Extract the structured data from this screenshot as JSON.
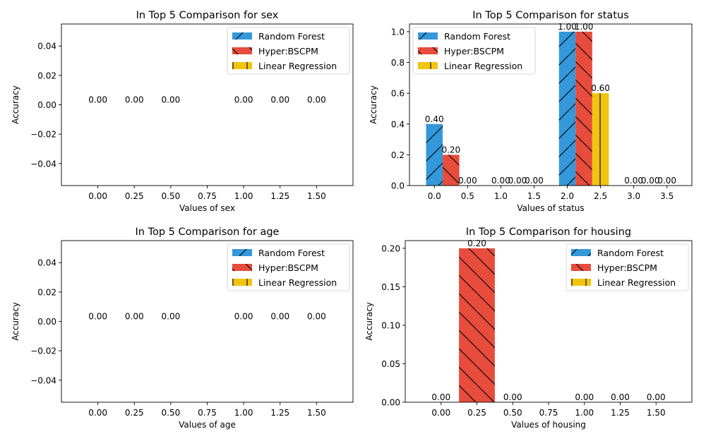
{
  "colors": {
    "random_forest": "#3498db",
    "hyper_bscpm": "#e74c3c",
    "linear_regression": "#f1c40f"
  },
  "chart_data": [
    {
      "type": "bar",
      "title": "In Top 5 Comparison for sex",
      "xlabel": "Values of sex",
      "ylabel": "Accuracy",
      "xlim": [
        -0.25,
        1.75
      ],
      "ylim": [
        -0.055,
        0.055
      ],
      "xticks": [
        "0.00",
        "0.25",
        "0.50",
        "0.75",
        "1.00",
        "1.25",
        "1.50"
      ],
      "xtick_values": [
        0,
        0.25,
        0.5,
        0.75,
        1.0,
        1.25,
        1.5
      ],
      "yticks": [
        "−0.04",
        "−0.02",
        "0.00",
        "0.02",
        "0.04"
      ],
      "ytick_values": [
        -0.04,
        -0.02,
        0,
        0.02,
        0.04
      ],
      "legend": "top-right",
      "grid": false,
      "bar_width": 0.25,
      "series": [
        {
          "name": "Random Forest",
          "color": "#3498db",
          "hatch": "/",
          "x": [
            0,
            1
          ],
          "values": [
            0,
            0
          ],
          "labels": [
            "0.00",
            "0.00"
          ]
        },
        {
          "name": "Hyper:BSCPM",
          "color": "#e74c3c",
          "hatch": "\\",
          "x": [
            0.25,
            1.25
          ],
          "values": [
            0,
            0
          ],
          "labels": [
            "0.00",
            "0.00"
          ]
        },
        {
          "name": "Linear Regression",
          "color": "#f1c40f",
          "hatch": "|",
          "x": [
            0.5,
            1.5
          ],
          "values": [
            0,
            0
          ],
          "labels": [
            "0.00",
            "0.00"
          ]
        }
      ]
    },
    {
      "type": "bar",
      "title": "In Top 5 Comparison for status",
      "xlabel": "Values of status",
      "ylabel": "Accuracy",
      "xlim": [
        -0.375,
        3.875
      ],
      "ylim": [
        0,
        1.05
      ],
      "xticks": [
        "0.0",
        "0.5",
        "1.0",
        "1.5",
        "2.0",
        "2.5",
        "3.0",
        "3.5"
      ],
      "xtick_values": [
        0,
        0.5,
        1.0,
        1.5,
        2.0,
        2.5,
        3.0,
        3.5
      ],
      "yticks": [
        "0.0",
        "0.2",
        "0.4",
        "0.6",
        "0.8",
        "1.0"
      ],
      "ytick_values": [
        0,
        0.2,
        0.4,
        0.6,
        0.8,
        1.0
      ],
      "legend": "top-left",
      "grid": false,
      "bar_width": 0.25,
      "series": [
        {
          "name": "Random Forest",
          "color": "#3498db",
          "hatch": "/",
          "x": [
            0,
            1,
            2,
            3
          ],
          "values": [
            0.4,
            0,
            1.0,
            0
          ],
          "labels": [
            "0.40",
            "0.00",
            "1.00",
            "0.00"
          ]
        },
        {
          "name": "Hyper:BSCPM",
          "color": "#e74c3c",
          "hatch": "\\",
          "x": [
            0.25,
            1.25,
            2.25,
            3.25
          ],
          "values": [
            0.2,
            0,
            1.0,
            0
          ],
          "labels": [
            "0.20",
            "0.00",
            "1.00",
            "0.00"
          ]
        },
        {
          "name": "Linear Regression",
          "color": "#f1c40f",
          "hatch": "|",
          "x": [
            0.5,
            1.5,
            2.5,
            3.5
          ],
          "values": [
            0,
            0,
            0.6,
            0
          ],
          "labels": [
            "0.00",
            "0.00",
            "0.60",
            "0.00"
          ]
        }
      ]
    },
    {
      "type": "bar",
      "title": "In Top 5 Comparison for age",
      "xlabel": "Values of age",
      "ylabel": "Accuracy",
      "xlim": [
        -0.25,
        1.75
      ],
      "ylim": [
        -0.055,
        0.055
      ],
      "xticks": [
        "0.00",
        "0.25",
        "0.50",
        "0.75",
        "1.00",
        "1.25",
        "1.50"
      ],
      "xtick_values": [
        0,
        0.25,
        0.5,
        0.75,
        1.0,
        1.25,
        1.5
      ],
      "yticks": [
        "−0.04",
        "−0.02",
        "0.00",
        "0.02",
        "0.04"
      ],
      "ytick_values": [
        -0.04,
        -0.02,
        0,
        0.02,
        0.04
      ],
      "legend": "top-right",
      "grid": false,
      "bar_width": 0.25,
      "series": [
        {
          "name": "Random Forest",
          "color": "#3498db",
          "hatch": "/",
          "x": [
            0,
            1
          ],
          "values": [
            0,
            0
          ],
          "labels": [
            "0.00",
            "0.00"
          ]
        },
        {
          "name": "Hyper:BSCPM",
          "color": "#e74c3c",
          "hatch": "\\",
          "x": [
            0.25,
            1.25
          ],
          "values": [
            0,
            0
          ],
          "labels": [
            "0.00",
            "0.00"
          ]
        },
        {
          "name": "Linear Regression",
          "color": "#f1c40f",
          "hatch": "|",
          "x": [
            0.5,
            1.5
          ],
          "values": [
            0,
            0
          ],
          "labels": [
            "0.00",
            "0.00"
          ]
        }
      ]
    },
    {
      "type": "bar",
      "title": "In Top 5 Comparison for housing",
      "xlabel": "Values of housing",
      "ylabel": "Accuracy",
      "xlim": [
        -0.25,
        1.75
      ],
      "ylim": [
        0,
        0.21
      ],
      "xticks": [
        "0.00",
        "0.25",
        "0.50",
        "0.75",
        "1.00",
        "1.25",
        "1.50"
      ],
      "xtick_values": [
        0,
        0.25,
        0.5,
        0.75,
        1.0,
        1.25,
        1.5
      ],
      "yticks": [
        "0.00",
        "0.05",
        "0.10",
        "0.15",
        "0.20"
      ],
      "ytick_values": [
        0,
        0.05,
        0.1,
        0.15,
        0.2
      ],
      "legend": "top-right",
      "grid": false,
      "bar_width": 0.25,
      "series": [
        {
          "name": "Random Forest",
          "color": "#3498db",
          "hatch": "/",
          "x": [
            0,
            1
          ],
          "values": [
            0,
            0
          ],
          "labels": [
            "0.00",
            "0.00"
          ]
        },
        {
          "name": "Hyper:BSCPM",
          "color": "#e74c3c",
          "hatch": "\\",
          "x": [
            0.25,
            1.25
          ],
          "values": [
            0.2,
            0
          ],
          "labels": [
            "0.20",
            "0.00"
          ]
        },
        {
          "name": "Linear Regression",
          "color": "#f1c40f",
          "hatch": "|",
          "x": [
            0.5,
            1.5
          ],
          "values": [
            0,
            0
          ],
          "labels": [
            "0.00",
            "0.00"
          ]
        }
      ]
    }
  ]
}
